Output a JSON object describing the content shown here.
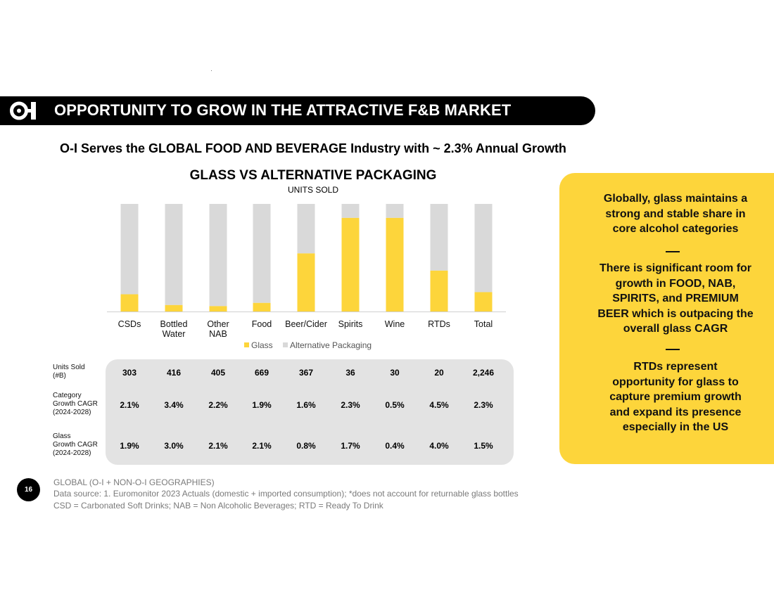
{
  "colors": {
    "glass": "#fdd53b",
    "alternative": "#d9d9d9",
    "banner": "#000000",
    "callout": "#fdd53b"
  },
  "banner": {
    "title": "OPPORTUNITY TO GROW IN THE ATTRACTIVE F&B MARKET",
    "logo_icon": "o-i-logo-icon"
  },
  "subtitle": "O-I Serves the GLOBAL FOOD AND BEVERAGE Industry with ~ 2.3% Annual Growth",
  "chart_data": {
    "type": "bar",
    "stacked": true,
    "percent_stacked": true,
    "title": "GLASS VS ALTERNATIVE PACKAGING",
    "subtitle": "UNITS SOLD",
    "categories": [
      "CSDs",
      "Bottled Water",
      "Other NAB",
      "Food",
      "Beer/Cider",
      "Spirits",
      "Wine",
      "RTDs",
      "Total"
    ],
    "category_lines": [
      [
        "CSDs"
      ],
      [
        "Bottled",
        "Water"
      ],
      [
        "Other",
        "NAB"
      ],
      [
        "Food"
      ],
      [
        "Beer/Cider"
      ],
      [
        "Spirits"
      ],
      [
        "Wine"
      ],
      [
        "RTDs"
      ],
      [
        "Total"
      ]
    ],
    "series": [
      {
        "name": "Glass",
        "values": [
          16,
          6,
          5,
          8,
          54,
          87,
          87,
          38,
          18
        ]
      },
      {
        "name": "Alternative Packaging",
        "values": [
          84,
          94,
          95,
          92,
          46,
          13,
          13,
          62,
          82
        ]
      }
    ],
    "ylim": [
      0,
      100
    ],
    "legend": "bottom"
  },
  "table": {
    "rows": [
      {
        "label_lines": [
          "Units Sold",
          "(#B)"
        ],
        "values": [
          "303",
          "416",
          "405",
          "669",
          "367",
          "36",
          "30",
          "20",
          "2,246"
        ]
      },
      {
        "label_lines": [
          "Category",
          "Growth CAGR",
          "(2024-2028)"
        ],
        "values": [
          "2.1%",
          "3.4%",
          "2.2%",
          "1.9%",
          "1.6%",
          "2.3%",
          "0.5%",
          "4.5%",
          "2.3%"
        ]
      },
      {
        "label_lines": [
          "Glass",
          "Growth CAGR",
          "(2024-2028)"
        ],
        "values": [
          "1.9%",
          "3.0%",
          "2.1%",
          "2.1%",
          "0.8%",
          "1.7%",
          "0.4%",
          "4.0%",
          "1.5%"
        ]
      }
    ]
  },
  "callout": {
    "p1_lines": [
      "Globally, glass maintains a",
      "strong and stable share in",
      "core alcohol categories"
    ],
    "p2_lines": [
      "There is significant room for",
      "growth in FOOD, NAB,",
      "SPIRITS, and PREMIUM",
      "BEER which is outpacing the",
      "overall glass CAGR"
    ],
    "p3_lines": [
      "RTDs represent",
      "opportunity for glass to",
      "capture premium growth",
      "and expand its presence",
      "especially in the US"
    ]
  },
  "page_number": "16",
  "footer": {
    "line1": "GLOBAL (O-I + NON-O-I GEOGRAPHIES)",
    "line2": "Data source: 1. Euromonitor 2023 Actuals (domestic + imported consumption); *does not account for returnable glass bottles",
    "line3": "CSD = Carbonated Soft Drinks;   NAB = Non Alcoholic Beverages;   RTD = Ready To Drink"
  }
}
